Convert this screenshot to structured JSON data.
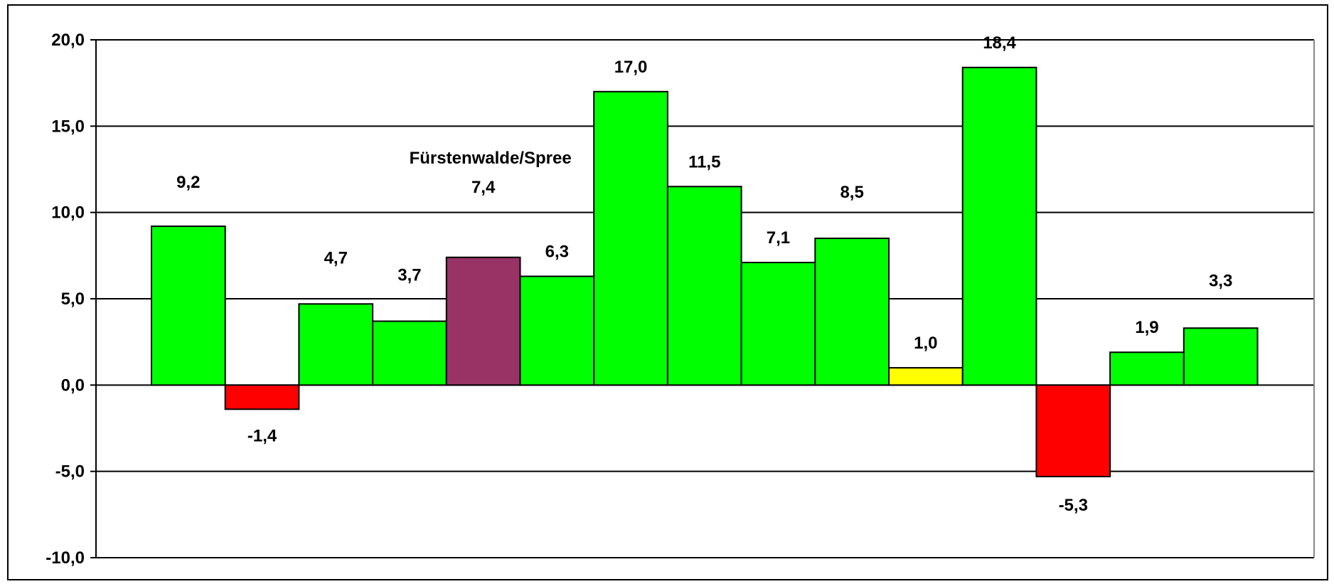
{
  "chart_data": {
    "type": "bar",
    "title": "",
    "xlabel": "",
    "ylabel": "",
    "ylim": [
      -10,
      20
    ],
    "yticks": [
      {
        "value": -10,
        "label": "-10,0"
      },
      {
        "value": -5,
        "label": "-5,0"
      },
      {
        "value": 0,
        "label": "0,0"
      },
      {
        "value": 5,
        "label": "5,0"
      },
      {
        "value": 10,
        "label": "10,0"
      },
      {
        "value": 15,
        "label": "15,0"
      },
      {
        "value": 20,
        "label": "20,0"
      }
    ],
    "grid": true,
    "legend": "none",
    "values": [
      9.2,
      -1.4,
      4.7,
      3.7,
      7.4,
      6.3,
      17.0,
      11.5,
      7.1,
      8.5,
      1.0,
      18.4,
      -5.3,
      1.9,
      3.3
    ],
    "labels": [
      "9,2",
      "-1,4",
      "4,7",
      "3,7",
      "7,4",
      "6,3",
      "17,0",
      "11,5",
      "7,1",
      "8,5",
      "1,0",
      "18,4",
      "-5,3",
      "1,9",
      "3,3"
    ],
    "colors": [
      "#00ff00",
      "#ff0000",
      "#00ff00",
      "#00ff00",
      "#993366",
      "#00ff00",
      "#00ff00",
      "#00ff00",
      "#00ff00",
      "#00ff00",
      "#ffff00",
      "#00ff00",
      "#ff0000",
      "#00ff00",
      "#00ff00"
    ],
    "annotation": {
      "text": "Fürstenwalde/Spree",
      "bar_index": 4
    }
  }
}
